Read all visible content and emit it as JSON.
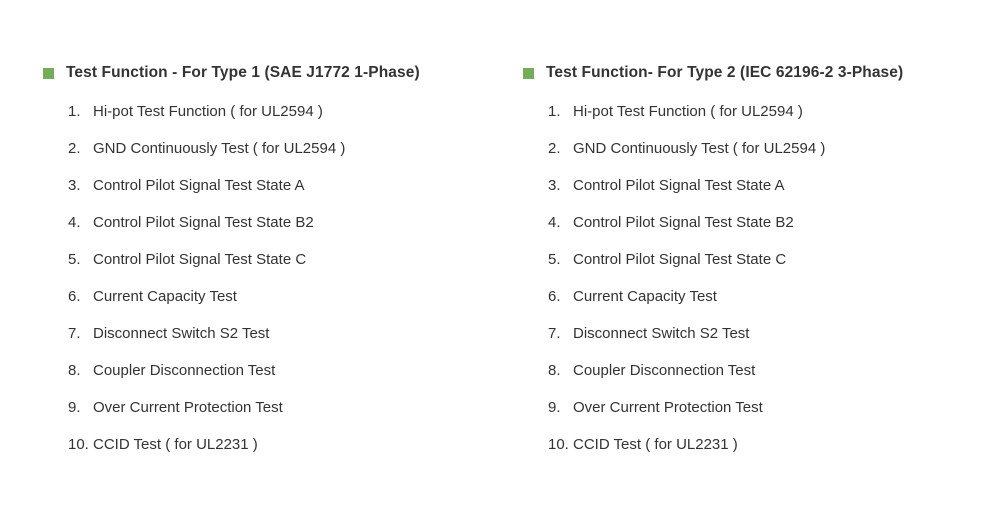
{
  "colors": {
    "background": "#ffffff",
    "bullet": "#74ac58",
    "text": "#333333"
  },
  "sections": [
    {
      "title": "Test Function - For Type 1 (SAE J1772 1-Phase)",
      "items": [
        {
          "num": "1.",
          "text": "Hi-pot Test Function ( for UL2594 )"
        },
        {
          "num": "2.",
          "text": "GND Continuously Test ( for UL2594 )"
        },
        {
          "num": "3.",
          "text": "Control Pilot Signal Test State A"
        },
        {
          "num": "4.",
          "text": "Control Pilot Signal Test State B2"
        },
        {
          "num": "5.",
          "text": "Control Pilot Signal Test State C"
        },
        {
          "num": "6.",
          "text": "Current Capacity Test"
        },
        {
          "num": "7.",
          "text": "Disconnect Switch S2 Test"
        },
        {
          "num": "8.",
          "text": "Coupler Disconnection Test"
        },
        {
          "num": "9.",
          "text": "Over Current Protection Test"
        },
        {
          "num": "10.",
          "text": "CCID Test ( for UL2231 )"
        }
      ]
    },
    {
      "title": "Test Function- For Type 2 (IEC 62196-2 3-Phase)",
      "items": [
        {
          "num": "1.",
          "text": "Hi-pot Test Function ( for UL2594 )"
        },
        {
          "num": "2.",
          "text": "GND Continuously Test ( for UL2594 )"
        },
        {
          "num": "3.",
          "text": "Control Pilot Signal Test State A"
        },
        {
          "num": "4.",
          "text": "Control Pilot Signal Test State B2"
        },
        {
          "num": "5.",
          "text": "Control Pilot Signal Test State C"
        },
        {
          "num": "6.",
          "text": "Current Capacity Test"
        },
        {
          "num": "7.",
          "text": "Disconnect Switch S2 Test"
        },
        {
          "num": "8.",
          "text": "Coupler Disconnection Test"
        },
        {
          "num": "9.",
          "text": "Over Current Protection Test"
        },
        {
          "num": "10.",
          "text": "CCID Test ( for UL2231 )"
        }
      ]
    }
  ]
}
